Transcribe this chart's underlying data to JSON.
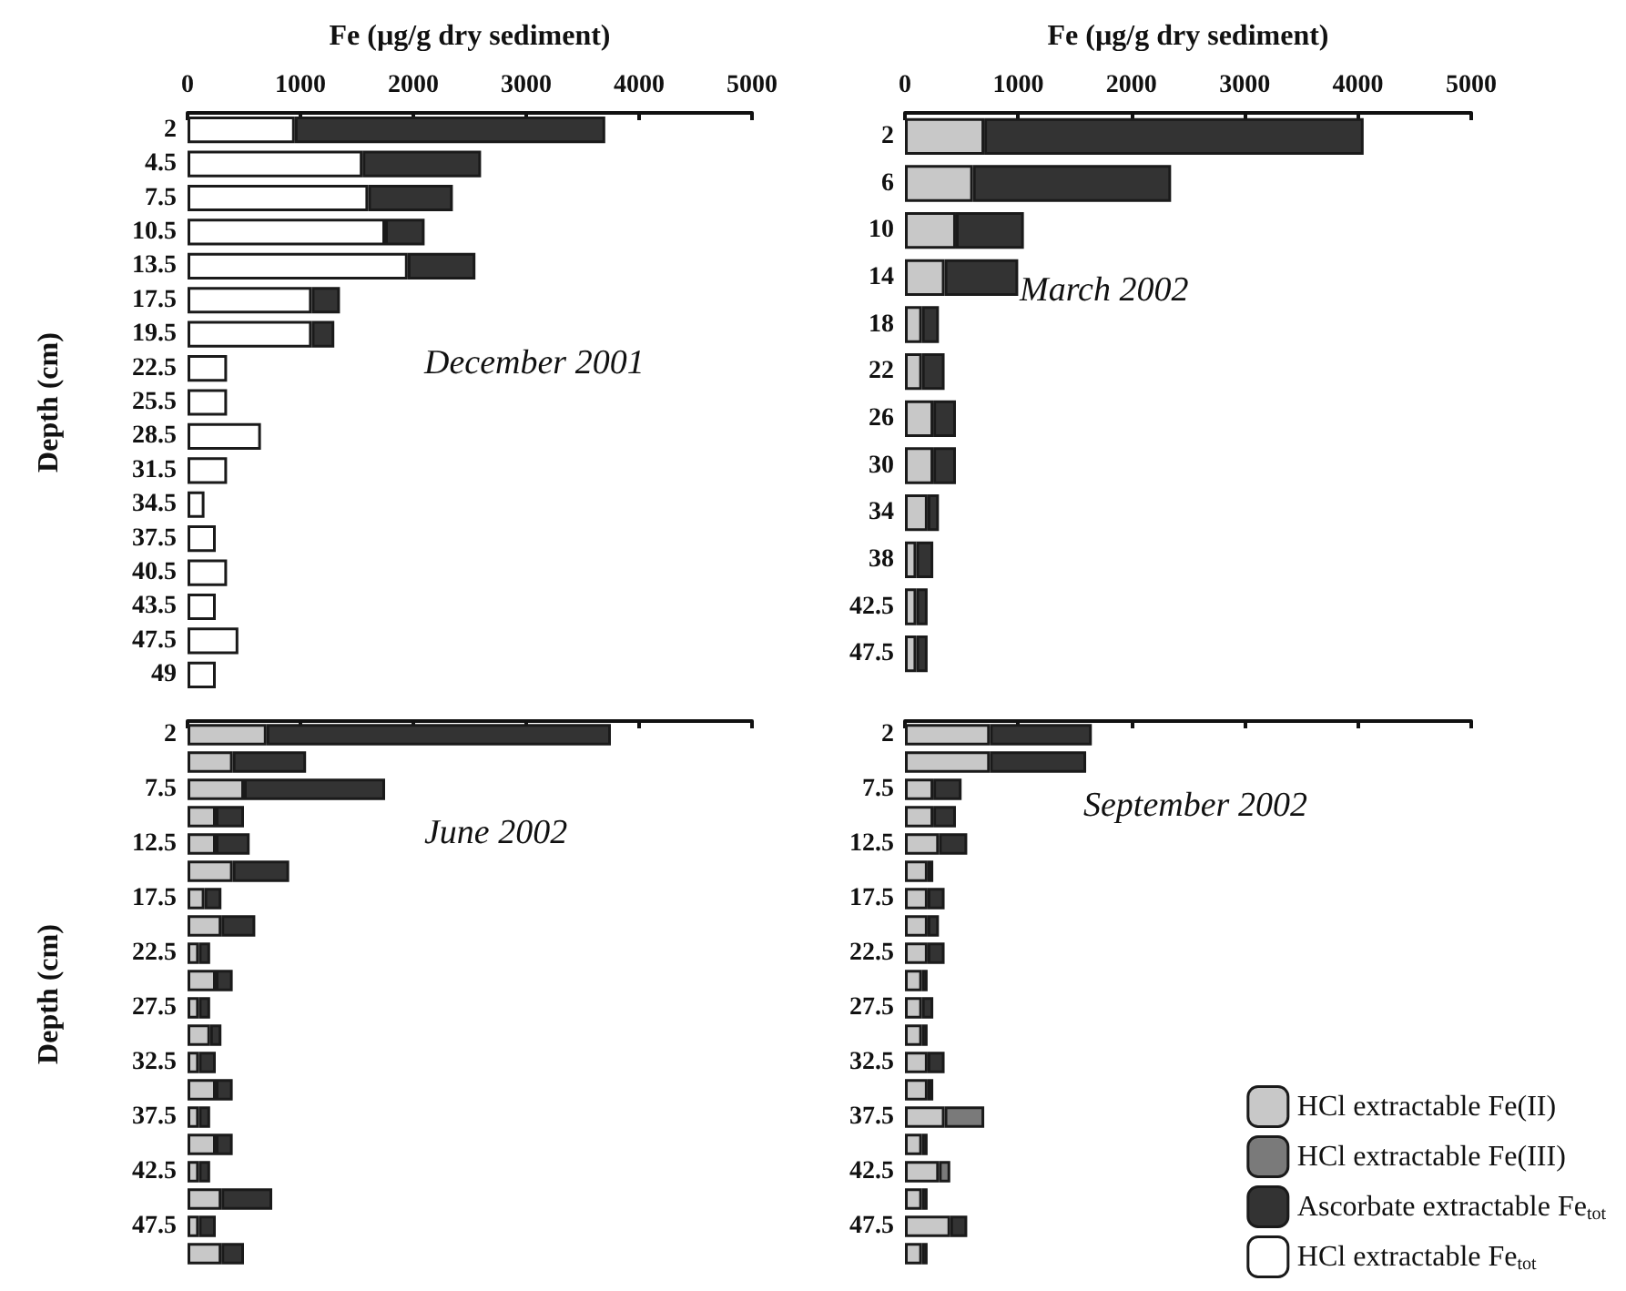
{
  "chart_data": [
    {
      "type": "bar",
      "orientation": "horizontal",
      "stacked": true,
      "title": "December 2001",
      "xlabel": "Fe (µg/g dry sediment)",
      "ylabel": "Depth (cm)",
      "categories": [
        "2",
        "4.5",
        "7.5",
        "10.5",
        "13.5",
        "17.5",
        "19.5",
        "22.5",
        "25.5",
        "28.5",
        "31.5",
        "34.5",
        "37.5",
        "40.5",
        "43.5",
        "47.5",
        "49"
      ],
      "xlim": [
        0,
        5000
      ],
      "xticks": [
        0,
        1000,
        2000,
        3000,
        4000,
        5000
      ],
      "series": [
        {
          "color": "#ffffff",
          "values": [
            950,
            1550,
            1600,
            1750,
            1950,
            1100,
            1100,
            350,
            350,
            650,
            350,
            150,
            250,
            350,
            250,
            450,
            250
          ]
        },
        {
          "color": "#333333",
          "values": [
            2750,
            1050,
            750,
            350,
            600,
            250,
            200,
            null,
            null,
            null,
            null,
            null,
            null,
            null,
            null,
            null,
            null
          ]
        }
      ]
    },
    {
      "type": "bar",
      "orientation": "horizontal",
      "stacked": true,
      "title": "March 2002",
      "xlabel": "Fe (µg/g dry sediment)",
      "categories": [
        "2",
        "6",
        "10",
        "14",
        "18",
        "22",
        "26",
        "30",
        "34",
        "38",
        "42.5",
        "47.5"
      ],
      "xlim": [
        0,
        5000
      ],
      "xticks": [
        0,
        1000,
        2000,
        3000,
        4000,
        5000
      ],
      "series": [
        {
          "color": "#c8c8c8",
          "values": [
            700,
            600,
            450,
            350,
            150,
            150,
            250,
            250,
            200,
            100,
            100,
            100
          ]
        },
        {
          "color": "#333333",
          "values": [
            3350,
            1750,
            600,
            650,
            150,
            200,
            200,
            200,
            100,
            150,
            100,
            100
          ]
        }
      ]
    },
    {
      "type": "bar",
      "orientation": "horizontal",
      "stacked": true,
      "title": "June 2002",
      "ylabel": "Depth (cm)",
      "categories": [
        "2",
        null,
        "7.5",
        null,
        "12.5",
        null,
        "17.5",
        null,
        "22.5",
        null,
        "27.5",
        null,
        "32.5",
        null,
        "37.5",
        null,
        "42.5",
        null,
        "47.5",
        null
      ],
      "xlim": [
        0,
        5000
      ],
      "xticks": [
        0,
        1000,
        2000,
        3000,
        4000,
        5000
      ],
      "tick_labels": "y",
      "series": [
        {
          "color": "#c8c8c8",
          "values": [
            700,
            400,
            500,
            250,
            250,
            400,
            150,
            300,
            100,
            250,
            100,
            200,
            100,
            250,
            100,
            250,
            100,
            300,
            100,
            300
          ]
        },
        {
          "color": "#333333",
          "values": [
            3050,
            650,
            1250,
            250,
            300,
            500,
            150,
            300,
            100,
            150,
            100,
            100,
            150,
            150,
            100,
            150,
            100,
            450,
            150,
            200
          ]
        }
      ]
    },
    {
      "type": "bar",
      "orientation": "horizontal",
      "stacked": true,
      "title": "September 2002",
      "categories": [
        "2",
        null,
        "7.5",
        null,
        "12.5",
        null,
        "17.5",
        null,
        "22.5",
        null,
        "27.5",
        null,
        "32.5",
        null,
        "37.5",
        null,
        "42.5",
        null,
        "47.5",
        null
      ],
      "xlim": [
        0,
        5000
      ],
      "xticks": [
        0,
        1000,
        2000,
        3000,
        4000,
        5000
      ],
      "tick_labels": "y",
      "series": [
        {
          "name": "HCl extractable Fe(II)",
          "color": "#c8c8c8",
          "values": [
            750,
            750,
            250,
            250,
            300,
            200,
            200,
            200,
            200,
            150,
            150,
            150,
            200,
            200,
            350,
            150,
            300,
            150,
            400,
            150
          ]
        },
        {
          "name": "HCl extractable Fe(III)",
          "color": "#7a7a7a",
          "values": [
            null,
            null,
            null,
            null,
            null,
            null,
            null,
            null,
            null,
            null,
            null,
            null,
            null,
            null,
            350,
            null,
            100,
            null,
            null,
            null
          ]
        },
        {
          "name": "Ascorbate extractable Fe$_{tot}$",
          "color": "#333333",
          "values": [
            900,
            850,
            250,
            200,
            250,
            50,
            150,
            100,
            150,
            50,
            100,
            50,
            150,
            50,
            null,
            50,
            null,
            50,
            150,
            50
          ]
        },
        {
          "name": "HCl extractable Fe$_{tot}$",
          "color": "#ffffff",
          "values": [
            null,
            null,
            null,
            null,
            null,
            null,
            null,
            null,
            null,
            null,
            null,
            null,
            null,
            null,
            null,
            null,
            null,
            null,
            null,
            null
          ]
        }
      ],
      "legend": "bottom right"
    }
  ]
}
